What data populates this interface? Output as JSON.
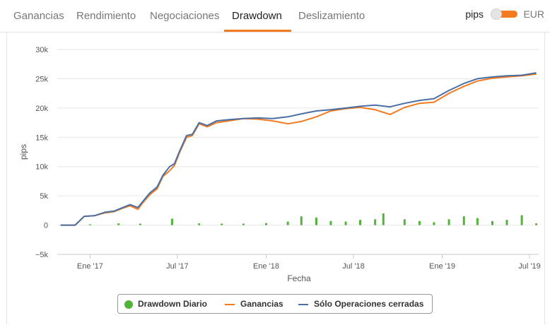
{
  "tabs": [
    {
      "label": "Ganancias",
      "active": false
    },
    {
      "label": "Rendimiento",
      "active": false
    },
    {
      "label": "Negociaciones",
      "active": false
    },
    {
      "label": "Drawdown",
      "active": true
    },
    {
      "label": "Deslizamiento",
      "active": false
    }
  ],
  "unit_toggle": {
    "left_label": "pips",
    "right_label": "EUR",
    "selected": "pips"
  },
  "colors": {
    "accent": "#f47a20",
    "drawdown": "#52b33a",
    "ganancias": "#f47a20",
    "cerradas": "#4a6fa5"
  },
  "chart_data": {
    "type": "line",
    "ylabel": "pips",
    "xlabel": "Fecha",
    "ylim": [
      -5000,
      30000
    ],
    "xlim": [
      "2016-10-25",
      "2019-07-20"
    ],
    "y_ticks": [
      -5000,
      0,
      5000,
      10000,
      15000,
      20000,
      25000,
      30000
    ],
    "y_tick_labels": [
      "−5k",
      "0",
      "5k",
      "10k",
      "15k",
      "20k",
      "25k",
      "30k"
    ],
    "x_ticks": [
      "2017-01-01",
      "2017-07-01",
      "2018-01-01",
      "2018-07-01",
      "2019-01-01",
      "2019-07-01"
    ],
    "x_tick_labels": [
      "Ene '17",
      "Jul '17",
      "Ene '18",
      "Jul '18",
      "Ene '19",
      "Jul '19"
    ],
    "grid": "horizontal",
    "legend_position": "bottom-center",
    "legend": [
      "Drawdown Diario",
      "Ganancias",
      "Sólo Operaciones cerradas"
    ],
    "series": [
      {
        "name": "Sólo Operaciones cerradas",
        "type": "line",
        "x": [
          "2016-11-01",
          "2016-12-01",
          "2016-12-20",
          "2017-01-10",
          "2017-02-01",
          "2017-02-20",
          "2017-03-10",
          "2017-03-25",
          "2017-04-10",
          "2017-04-20",
          "2017-05-05",
          "2017-05-20",
          "2017-06-01",
          "2017-06-15",
          "2017-06-25",
          "2017-07-05",
          "2017-07-20",
          "2017-08-01",
          "2017-08-15",
          "2017-09-01",
          "2017-09-20",
          "2017-10-15",
          "2017-11-15",
          "2017-12-15",
          "2018-01-15",
          "2018-02-15",
          "2018-03-15",
          "2018-04-15",
          "2018-05-15",
          "2018-06-15",
          "2018-07-15",
          "2018-08-15",
          "2018-09-15",
          "2018-10-15",
          "2018-11-15",
          "2018-12-15",
          "2019-01-15",
          "2019-02-15",
          "2019-03-15",
          "2019-04-15",
          "2019-05-15",
          "2019-06-15",
          "2019-07-15"
        ],
        "y": [
          0,
          0,
          1500,
          1600,
          2200,
          2400,
          3000,
          3500,
          3000,
          4000,
          5500,
          6500,
          8500,
          10000,
          10500,
          12500,
          15300,
          15500,
          17500,
          17000,
          17800,
          18000,
          18200,
          18300,
          18200,
          18500,
          19000,
          19500,
          19700,
          20000,
          20300,
          20500,
          20200,
          20800,
          21300,
          21600,
          23000,
          24200,
          25000,
          25300,
          25500,
          25600,
          26000
        ]
      },
      {
        "name": "Ganancias",
        "type": "line",
        "x": [
          "2016-11-01",
          "2016-12-01",
          "2016-12-20",
          "2017-01-10",
          "2017-02-01",
          "2017-02-20",
          "2017-03-10",
          "2017-03-25",
          "2017-04-10",
          "2017-04-20",
          "2017-05-05",
          "2017-05-20",
          "2017-06-01",
          "2017-06-15",
          "2017-06-25",
          "2017-07-05",
          "2017-07-20",
          "2017-08-01",
          "2017-08-15",
          "2017-09-01",
          "2017-09-20",
          "2017-10-15",
          "2017-11-15",
          "2017-12-15",
          "2018-01-15",
          "2018-02-15",
          "2018-03-15",
          "2018-04-15",
          "2018-05-15",
          "2018-06-15",
          "2018-07-15",
          "2018-08-15",
          "2018-09-15",
          "2018-10-15",
          "2018-11-15",
          "2018-12-15",
          "2019-01-15",
          "2019-02-15",
          "2019-03-15",
          "2019-04-15",
          "2019-05-15",
          "2019-06-15",
          "2019-07-15"
        ],
        "y": [
          0,
          0,
          1500,
          1600,
          2100,
          2300,
          2900,
          3300,
          2700,
          3800,
          5200,
          6200,
          8300,
          9300,
          10200,
          12300,
          15000,
          15300,
          17300,
          16800,
          17500,
          17800,
          18200,
          18100,
          17800,
          17300,
          17700,
          18500,
          19500,
          19900,
          20100,
          19700,
          18900,
          20100,
          20800,
          21000,
          22500,
          23700,
          24600,
          25100,
          25300,
          25500,
          25800
        ]
      },
      {
        "name": "Drawdown Diario",
        "type": "bar",
        "x": [
          "2017-01-01",
          "2017-03-01",
          "2017-04-15",
          "2017-06-20",
          "2017-08-15",
          "2017-10-01",
          "2017-11-15",
          "2018-01-01",
          "2018-02-15",
          "2018-03-15",
          "2018-04-15",
          "2018-05-15",
          "2018-06-15",
          "2018-07-15",
          "2018-08-15",
          "2018-09-01",
          "2018-10-15",
          "2018-11-15",
          "2018-12-15",
          "2019-01-15",
          "2019-02-15",
          "2019-03-15",
          "2019-04-15",
          "2019-05-15",
          "2019-06-15",
          "2019-07-15"
        ],
        "y": [
          150,
          300,
          250,
          1100,
          300,
          250,
          250,
          350,
          600,
          1500,
          1300,
          700,
          600,
          900,
          1000,
          2000,
          1000,
          700,
          500,
          1000,
          1500,
          1200,
          700,
          900,
          1700,
          300
        ]
      }
    ]
  }
}
